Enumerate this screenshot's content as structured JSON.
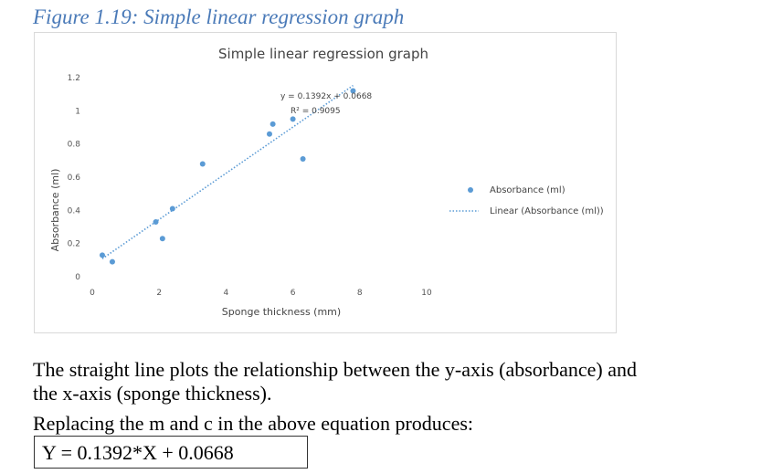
{
  "figure_caption": "Figure 1.19: Simple linear regression graph",
  "chart_data": {
    "type": "scatter",
    "title": "Simple linear regression graph",
    "xlabel": "Sponge thickness (mm)",
    "ylabel": "Absorbance (ml)",
    "xlim": [
      0,
      10
    ],
    "ylim": [
      0,
      1.2
    ],
    "x_ticks": [
      "0",
      "2",
      "4",
      "6",
      "8",
      "10"
    ],
    "y_ticks": [
      "0",
      "0.2",
      "0.4",
      "0.6",
      "0.8",
      "1",
      "1.2"
    ],
    "grid": false,
    "legend_position": "right",
    "series": [
      {
        "name": "Absorbance (ml)",
        "color": "#5b9bd5",
        "points": [
          {
            "x": 0.3,
            "y": 0.13
          },
          {
            "x": 0.6,
            "y": 0.09
          },
          {
            "x": 1.9,
            "y": 0.33
          },
          {
            "x": 2.1,
            "y": 0.23
          },
          {
            "x": 2.4,
            "y": 0.41
          },
          {
            "x": 3.3,
            "y": 0.68
          },
          {
            "x": 5.3,
            "y": 0.86
          },
          {
            "x": 5.4,
            "y": 0.92
          },
          {
            "x": 6.0,
            "y": 0.95
          },
          {
            "x": 6.3,
            "y": 0.71
          },
          {
            "x": 7.8,
            "y": 1.12
          }
        ]
      },
      {
        "name": "Linear (Absorbance (ml))",
        "color": "#5b9bd5",
        "style": "dotted",
        "trendline": {
          "slope": 0.1392,
          "intercept": 0.0668,
          "x_from": 0.3,
          "x_to": 7.8
        }
      }
    ],
    "annotations": {
      "equation": "y = 0.1392x + 0.0668",
      "r_squared": "R² = 0.9095"
    }
  },
  "paragraph": {
    "line1": "The straight line plots the relationship between the y-axis (absorbance) and",
    "line2": "the x-axis (sponge thickness).",
    "line3": "Replacing the m and c in the above equation produces:"
  },
  "equation_box": "Y = 0.1392*X + 0.0668"
}
